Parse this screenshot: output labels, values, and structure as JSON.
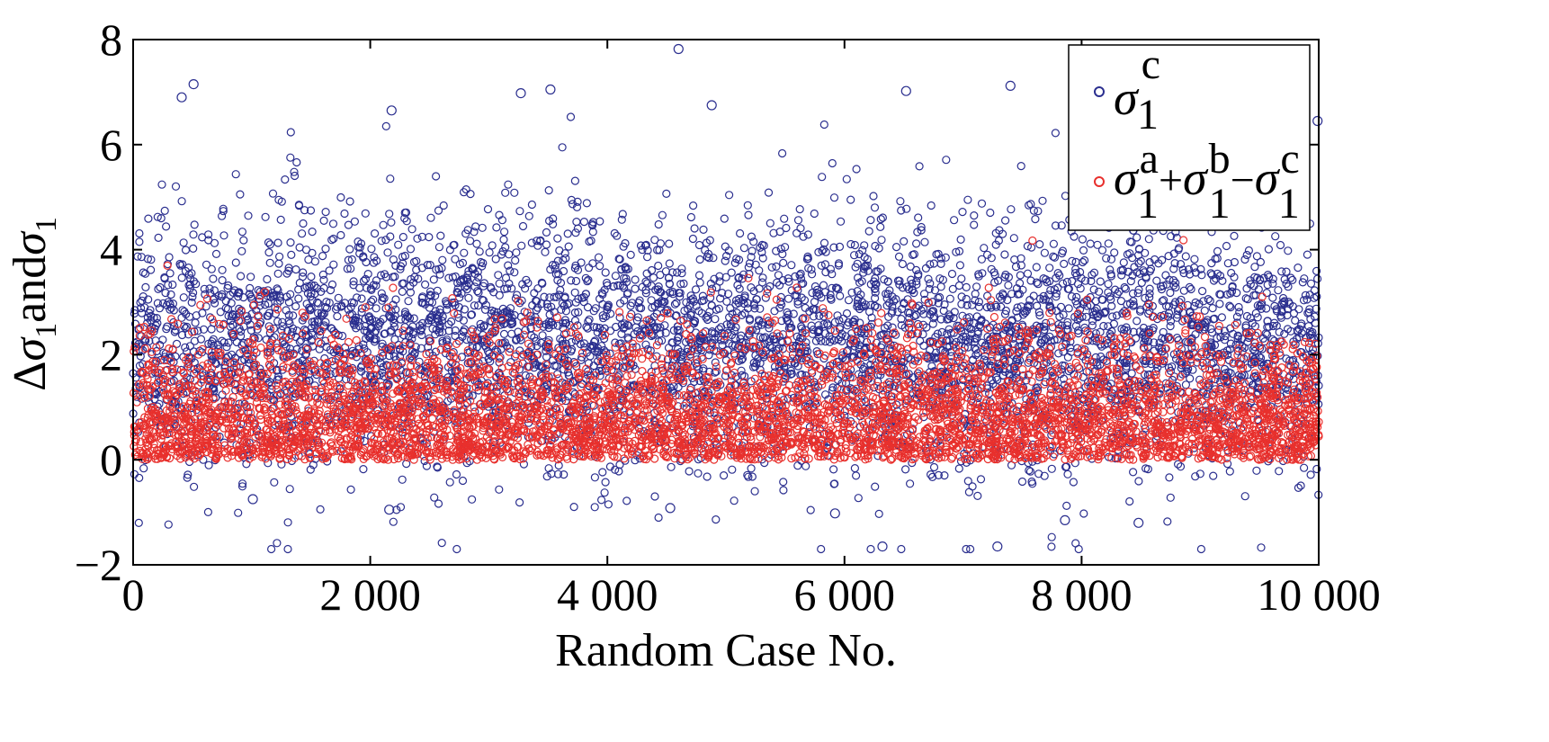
{
  "chart_data": {
    "type": "scatter",
    "title": "",
    "xlabel": "Random Case No.",
    "ylabel": {
      "delta": "Δ",
      "sigma": "σ",
      "sub": "1",
      "and": "and"
    },
    "xlim": [
      0,
      10000
    ],
    "ylim": [
      -2,
      8
    ],
    "x_ticks": [
      0,
      2000,
      4000,
      6000,
      8000,
      10000
    ],
    "x_tick_labels": [
      "0",
      "2 000",
      "4 000",
      "6 000",
      "8 000",
      "10 000"
    ],
    "y_ticks": [
      -2,
      0,
      2,
      4,
      6,
      8
    ],
    "y_tick_labels": [
      "−2",
      "0",
      "2",
      "4",
      "6",
      "8"
    ],
    "grid": false,
    "legend_position": "top-right",
    "marker": "open circle",
    "n_points_per_series": 10000,
    "series": [
      {
        "legend": {
          "base": "σ",
          "sup": "c",
          "sub": "1"
        },
        "color": "#2b2f8f",
        "distribution": {
          "typical_range": [
            0,
            4.5
          ],
          "min": -1.7,
          "max": 7.8
        },
        "notable_points": [
          {
            "x": 4600,
            "y": 7.82
          },
          {
            "x": 510,
            "y": 7.15
          },
          {
            "x": 3520,
            "y": 7.05
          },
          {
            "x": 3270,
            "y": 6.98
          },
          {
            "x": 7400,
            "y": 7.12
          },
          {
            "x": 6520,
            "y": 7.02
          },
          {
            "x": 410,
            "y": 6.9
          },
          {
            "x": 4880,
            "y": 6.75
          },
          {
            "x": 2180,
            "y": 6.65
          },
          {
            "x": 6320,
            "y": -1.65
          },
          {
            "x": 7290,
            "y": -1.65
          },
          {
            "x": 8480,
            "y": -1.2
          },
          {
            "x": 7860,
            "y": -1.15
          },
          {
            "x": 5920,
            "y": -1.02
          },
          {
            "x": 2160,
            "y": -0.95
          },
          {
            "x": 4530,
            "y": -0.92
          },
          {
            "x": 1010,
            "y": -0.75
          },
          {
            "x": 9990,
            "y": 6.45
          }
        ]
      },
      {
        "legend": {
          "terms": [
            {
              "base": "σ",
              "sup": "a",
              "sub": "1"
            },
            {
              "op": "+",
              "base": "σ",
              "sup": "b",
              "sub": "1"
            },
            {
              "op": "−",
              "base": "σ",
              "sup": "c",
              "sub": "1"
            }
          ]
        },
        "color": "#e8302d",
        "distribution": {
          "typical_range": [
            0,
            3.0
          ],
          "min": 0,
          "max": 4.9
        }
      }
    ]
  }
}
